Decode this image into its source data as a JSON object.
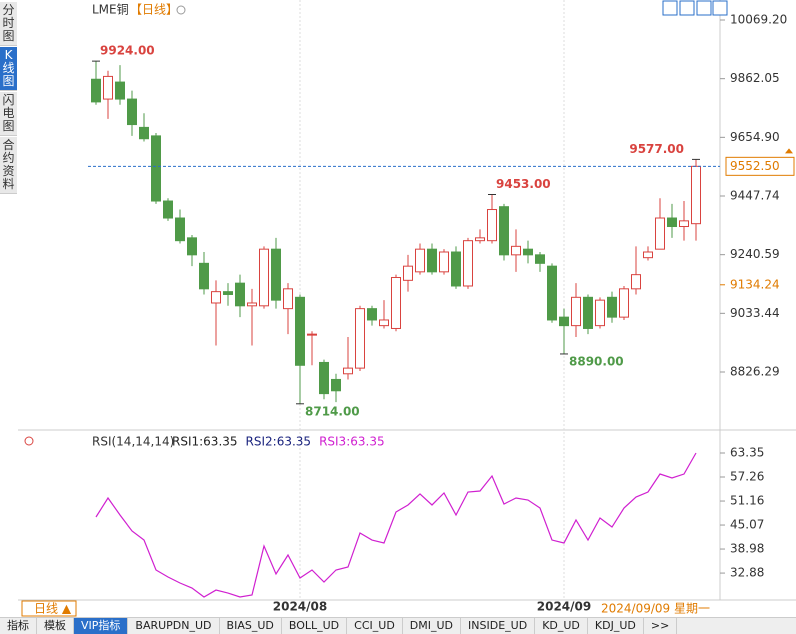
{
  "sidebar": [
    "分时图",
    "K线图",
    "闪电图",
    "合约资料"
  ],
  "tabs": [
    "指标",
    "模板",
    "VIP指标",
    "BARUPDN_UD",
    "BIAS_UD",
    "BOLL_UD",
    "CCI_UD",
    "DMI_UD",
    "INSIDE_UD",
    "KD_UD",
    "KDJ_UD",
    ">>"
  ],
  "period_button": "日线 ▲",
  "cursor_date": "2024/09/09 星期一",
  "chart_data": [
    {
      "type": "candlestick",
      "title": "LME铜",
      "subtitle": "【日线】",
      "categories": [
        null,
        null,
        null,
        null,
        null,
        null,
        null,
        null,
        null,
        null,
        null,
        null,
        null,
        null,
        null,
        null,
        null,
        "2024/08",
        null,
        null,
        null,
        null,
        null,
        null,
        null,
        null,
        null,
        null,
        null,
        null,
        null,
        null,
        null,
        null,
        null,
        null,
        null,
        null,
        null,
        "2024/09",
        null,
        null,
        null,
        null,
        null,
        null,
        null,
        null,
        null,
        null,
        null
      ],
      "open": [
        9860,
        9790,
        9850,
        9790,
        9690,
        9660,
        9430,
        9370,
        9300,
        9210,
        9070,
        9110,
        9140,
        9060,
        9060,
        9260,
        9050,
        9090,
        8960,
        8860,
        8800,
        8820,
        8840,
        9050,
        8990,
        8980,
        9150,
        9180,
        9260,
        9180,
        9250,
        9130,
        9290,
        9290,
        9410,
        9240,
        9260,
        9240,
        9200,
        9020,
        8990,
        9090,
        8990,
        9090,
        9020,
        9120,
        9230,
        9260,
        9370,
        9340,
        9350
      ],
      "high": [
        9924,
        9890,
        9910,
        9820,
        9740,
        9670,
        9440,
        9400,
        9310,
        9250,
        9150,
        9140,
        9170,
        9120,
        9270,
        9300,
        9140,
        9100,
        8970,
        8870,
        8820,
        8950,
        9060,
        9060,
        9080,
        9170,
        9240,
        9280,
        9280,
        9260,
        9270,
        9300,
        9330,
        9453,
        9420,
        9330,
        9290,
        9250,
        9210,
        9050,
        9140,
        9100,
        9090,
        9110,
        9130,
        9270,
        9270,
        9440,
        9420,
        9430,
        9577
      ],
      "low": [
        9770,
        9720,
        9770,
        9660,
        9640,
        9420,
        9360,
        9280,
        9200,
        9100,
        8920,
        9060,
        9020,
        8920,
        9050,
        9050,
        8960,
        8714,
        8850,
        8730,
        8720,
        8800,
        8830,
        8990,
        8980,
        8970,
        9110,
        9170,
        9170,
        9170,
        9120,
        9120,
        9280,
        9280,
        9220,
        9180,
        9210,
        9180,
        9000,
        8890,
        8950,
        8960,
        8980,
        9000,
        9010,
        9100,
        9220,
        9260,
        9300,
        9290,
        9290
      ],
      "close": [
        9780,
        9870,
        9790,
        9700,
        9650,
        9430,
        9370,
        9290,
        9240,
        9120,
        9110,
        9100,
        9060,
        9070,
        9260,
        9080,
        9120,
        8850,
        8960,
        8750,
        8760,
        8840,
        9050,
        9010,
        9010,
        9160,
        9200,
        9260,
        9180,
        9250,
        9130,
        9290,
        9300,
        9400,
        9240,
        9270,
        9240,
        9210,
        9010,
        8990,
        9090,
        8980,
        9080,
        9020,
        9120,
        9170,
        9250,
        9370,
        9340,
        9360,
        9552.5
      ],
      "high_labels": [
        "9924.00",
        null,
        null,
        null,
        null,
        null,
        null,
        null,
        null,
        null,
        null,
        null,
        null,
        null,
        null,
        null,
        null,
        null,
        null,
        null,
        null,
        null,
        null,
        null,
        null,
        null,
        null,
        null,
        null,
        null,
        null,
        null,
        null,
        "9453.00",
        null,
        null,
        null,
        null,
        null,
        null,
        null,
        null,
        null,
        null,
        null,
        null,
        null,
        null,
        null,
        null,
        "9577.00"
      ],
      "low_labels": [
        null,
        null,
        null,
        null,
        null,
        null,
        null,
        null,
        null,
        null,
        null,
        null,
        null,
        null,
        null,
        null,
        null,
        "8714.00",
        null,
        null,
        null,
        null,
        null,
        null,
        null,
        null,
        null,
        null,
        null,
        null,
        null,
        null,
        null,
        null,
        null,
        null,
        null,
        null,
        null,
        "8890.00",
        null,
        null,
        null,
        null,
        null,
        null,
        null,
        null,
        null,
        null,
        null
      ],
      "up_color": "#d9433f",
      "down_color": "#4f9a48",
      "last_price": {
        "value": 9552.5,
        "label": "9552.50"
      },
      "marker_price": {
        "value": 9134.24,
        "label": "9134.24"
      },
      "ylim": [
        8656.8,
        10111.57
      ],
      "yticks": [
        {
          "value": 10069.2,
          "label": "10069.20"
        },
        {
          "value": 9862.05,
          "label": "9862.05"
        },
        {
          "value": 9654.9,
          "label": "9654.90"
        },
        {
          "value": 9447.74,
          "label": "9447.74"
        },
        {
          "value": 9240.59,
          "label": "9240.59"
        },
        {
          "value": 9033.44,
          "label": "9033.44"
        },
        {
          "value": 8826.29,
          "label": "8826.29"
        }
      ]
    },
    {
      "type": "line",
      "title": "RSI(14,14,14)",
      "legend": [
        {
          "text": "RSI1:63.35",
          "color": "#222222"
        },
        {
          "text": "RSI2:63.35",
          "color": "#1a237e"
        },
        {
          "text": "RSI3:63.35",
          "color": "#d020d0"
        }
      ],
      "series": [
        {
          "name": "RSI3",
          "color": "#d020d0",
          "values": [
            47.11,
            51.93,
            47.62,
            43.56,
            41.27,
            33.66,
            31.88,
            30.36,
            29.09,
            26.81,
            28.57,
            27.82,
            26.81,
            27.32,
            39.75,
            32.65,
            37.47,
            31.63,
            33.66,
            30.62,
            33.66,
            34.42,
            43.05,
            41.27,
            40.51,
            48.38,
            50.16,
            52.95,
            50.16,
            53.2,
            47.62,
            53.45,
            53.71,
            57.51,
            50.41,
            51.93,
            51.42,
            49.39,
            41.27,
            40.51,
            46.35,
            41.27,
            46.86,
            44.57,
            49.39,
            52.18,
            53.45,
            58.02,
            57.01,
            58.02,
            63.35
          ]
        }
      ],
      "ylim": [
        26.05,
        66.65
      ],
      "yticks": [
        63.35,
        57.26,
        51.16,
        45.07,
        38.98,
        32.88
      ]
    }
  ]
}
